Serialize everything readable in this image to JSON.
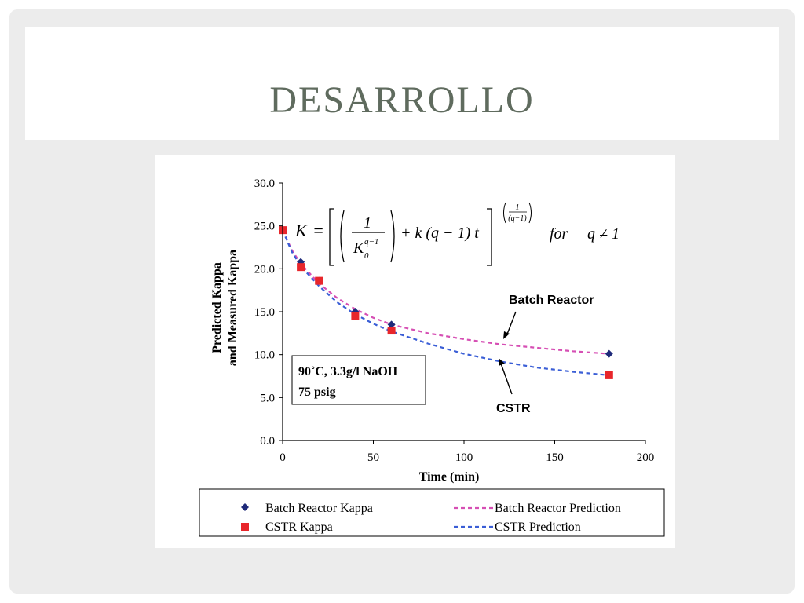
{
  "slide": {
    "title": "DESARROLLO"
  },
  "chart_data": {
    "type": "scatter",
    "xlabel": "Time (min)",
    "ylabel_line1": "Predicted Kappa",
    "ylabel_line2": "and Measured Kappa",
    "xlim": [
      0,
      200
    ],
    "ylim": [
      0,
      30
    ],
    "x_ticks": [
      "0",
      "50",
      "100",
      "150",
      "200"
    ],
    "y_ticks": [
      "0.0",
      "5.0",
      "10.0",
      "15.0",
      "20.0",
      "25.0",
      "30.0"
    ],
    "series": [
      {
        "name": "Batch Reactor Kappa",
        "kind": "points",
        "marker": "diamond",
        "color": "#1f2a7a",
        "x": [
          0,
          10,
          20,
          40,
          60,
          180
        ],
        "y": [
          24.5,
          20.8,
          18.6,
          15.0,
          13.5,
          10.1
        ]
      },
      {
        "name": "CSTR Kappa",
        "kind": "points",
        "marker": "square",
        "color": "#e8262b",
        "x": [
          0,
          10,
          20,
          40,
          60,
          180
        ],
        "y": [
          24.5,
          20.2,
          18.6,
          14.5,
          12.8,
          7.6
        ]
      },
      {
        "name": "Batch Reactor Prediction",
        "kind": "dashed-line",
        "color": "#d64fb4",
        "x": [
          0,
          5,
          10,
          20,
          30,
          40,
          50,
          60,
          80,
          100,
          120,
          140,
          160,
          180
        ],
        "y": [
          24.5,
          22.2,
          20.6,
          18.3,
          16.6,
          15.3,
          14.3,
          13.5,
          12.5,
          11.8,
          11.2,
          10.8,
          10.4,
          10.1
        ]
      },
      {
        "name": "CSTR Prediction",
        "kind": "dashed-line",
        "color": "#3a5ed6",
        "x": [
          0,
          5,
          10,
          20,
          30,
          40,
          50,
          60,
          80,
          100,
          120,
          140,
          160,
          180
        ],
        "y": [
          24.5,
          22.0,
          20.3,
          18.0,
          16.1,
          14.7,
          13.6,
          12.7,
          11.3,
          10.1,
          9.2,
          8.5,
          8.0,
          7.6
        ]
      }
    ],
    "annotations": {
      "batch_label": "Batch Reactor",
      "cstr_label": "CSTR"
    },
    "conditions": {
      "line1": "90˚C, 3.3g/l NaOH",
      "line2": "75 psig"
    },
    "equation": {
      "lhs": "K",
      "one": "1",
      "base": "K",
      "sub": "0",
      "sup": "q−1",
      "mid": "+ k (q − 1) t",
      "exp_neg": "−",
      "exp_one": "1",
      "exp_den": "(q−1)",
      "cond": "for",
      "cond_expr": "q ≠ 1"
    },
    "legend_placement": "bottom",
    "grid": false
  }
}
